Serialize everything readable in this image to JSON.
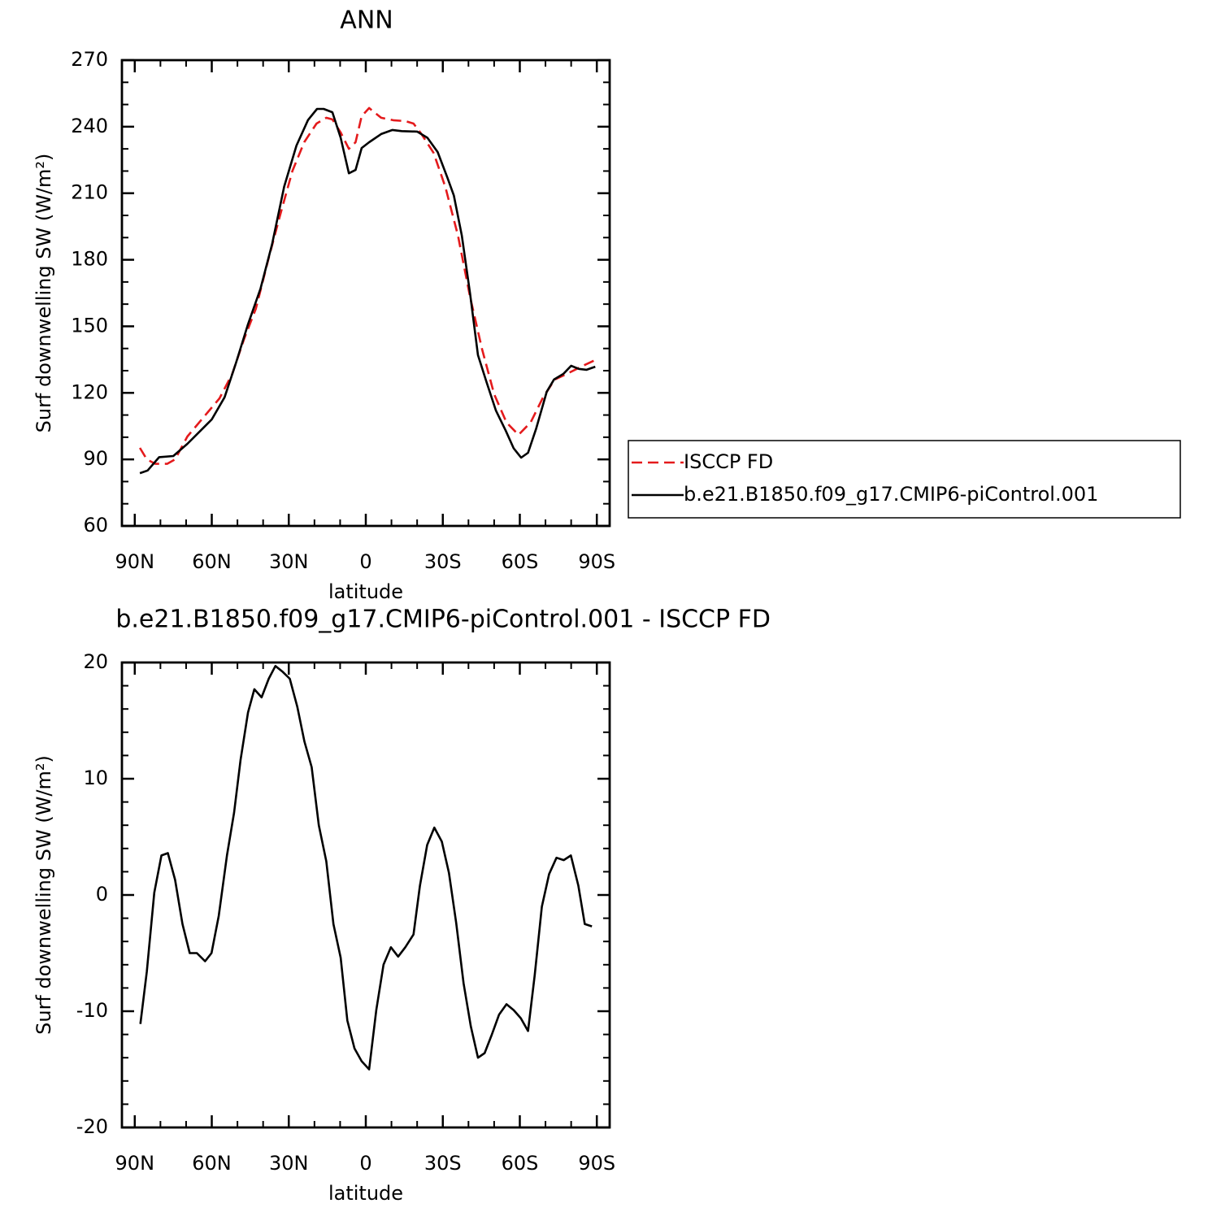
{
  "chart_data": [
    {
      "type": "line",
      "title": "ANN",
      "xlabel": "latitude",
      "ylabel": "Surf downwelling SW (W/m²)",
      "xlim": [
        95,
        -95
      ],
      "ylim": [
        60,
        270
      ],
      "xticks": [
        {
          "value": 90,
          "label": "90N"
        },
        {
          "value": 60,
          "label": "60N"
        },
        {
          "value": 30,
          "label": "30N"
        },
        0,
        {
          "value": -30,
          "label": "30S"
        },
        {
          "value": -60,
          "label": "60S"
        },
        {
          "value": -90,
          "label": "90S"
        }
      ],
      "yticks": [
        60,
        90,
        120,
        150,
        180,
        210,
        240,
        270
      ],
      "xminor_divisions": 3,
      "yminor_divisions": 3,
      "series": [
        {
          "name": "ISCCP FD",
          "color": "#e41a1c",
          "dash": true,
          "x": [
            88,
            85.3,
            82,
            77.4,
            74.3,
            69.5,
            63.2,
            57,
            52,
            47.5,
            42.8,
            38,
            33.4,
            28.6,
            24,
            19.2,
            15.4,
            13,
            9.8,
            6.6,
            4,
            1.6,
            -1.3,
            -6,
            -10.7,
            -15.4,
            -18.6,
            -21.7,
            -26.4,
            -31,
            -35.9,
            -40.6,
            -45.3,
            -50,
            -54.8,
            -59.5,
            -64.2,
            -68.9,
            -73.6,
            -78.4,
            -84.6,
            -89.4
          ],
          "values": [
            95.2,
            90,
            88,
            88,
            90,
            100.3,
            109,
            117.5,
            128.6,
            144,
            158,
            180,
            200,
            220,
            233,
            241.4,
            244,
            243.3,
            237.4,
            230,
            233,
            244.7,
            248.4,
            244,
            242.9,
            242.5,
            241.4,
            236.7,
            228.2,
            212.8,
            190.9,
            163.4,
            139.6,
            119.4,
            106.6,
            101.1,
            106.6,
            117.6,
            126,
            128.6,
            132.2,
            134.8
          ]
        },
        {
          "name": "b.e21.B1850.f09_g17.CMIP6-piControl.001",
          "color": "#000000",
          "dash": false,
          "x": [
            88,
            85,
            80.5,
            75,
            69.5,
            60,
            55,
            50.5,
            46,
            41,
            36.5,
            31.8,
            27,
            22.5,
            19,
            16.4,
            13,
            9.8,
            6.6,
            4,
            1.6,
            -1.3,
            -6,
            -10.4,
            -14,
            -20,
            -24,
            -28,
            -31.8,
            -34.3,
            -37.4,
            -40.6,
            -43.7,
            -47,
            -50.7,
            -54.5,
            -57.6,
            -60.5,
            -63.2,
            -66.4,
            -70.5,
            -73.3,
            -77,
            -80,
            -83,
            -86,
            -89.4
          ],
          "values": [
            83.8,
            85,
            91,
            91.5,
            97,
            108,
            118,
            133.7,
            150.5,
            167,
            187,
            213,
            231.5,
            243,
            248,
            248,
            246.5,
            235,
            219,
            220.5,
            230.4,
            233,
            236.7,
            238.5,
            238,
            237.8,
            235,
            228.6,
            217,
            209,
            191,
            165,
            137,
            125,
            112,
            103,
            95,
            90.8,
            93,
            104,
            120.5,
            126,
            128.6,
            132.2,
            130.8,
            130.4,
            131.8
          ]
        }
      ]
    },
    {
      "type": "line",
      "title": "b.e21.B1850.f09_g17.CMIP6-piControl.001 - ISCCP FD",
      "xlabel": "latitude",
      "ylabel": "Surf downwelling SW (W/m²)",
      "xlim": [
        95,
        -95
      ],
      "ylim": [
        -20,
        20
      ],
      "xticks": [
        {
          "value": 90,
          "label": "90N"
        },
        {
          "value": 60,
          "label": "60N"
        },
        {
          "value": 30,
          "label": "30N"
        },
        0,
        {
          "value": -30,
          "label": "30S"
        },
        {
          "value": -60,
          "label": "60S"
        },
        {
          "value": -90,
          "label": "90S"
        }
      ],
      "yticks": [
        -20,
        -10,
        0,
        10,
        20
      ],
      "xminor_divisions": 3,
      "yminor_divisions": 5,
      "color": "#000000",
      "x": [
        87.8,
        85.3,
        82.4,
        79.6,
        77.1,
        74.3,
        71.4,
        68.6,
        65.8,
        62.6,
        60.1,
        57.3,
        54.1,
        51.3,
        48.8,
        45.9,
        43.4,
        40.6,
        37.8,
        35.2,
        32.4,
        29.6,
        26.7,
        23.9,
        21.1,
        18.3,
        15.4,
        12.6,
        9.8,
        7.2,
        4.4,
        1.6,
        -1.3,
        -4.1,
        -6.9,
        -9.8,
        -12.6,
        -15.4,
        -18.6,
        -21.1,
        -23.9,
        -26.7,
        -29.6,
        -32.4,
        -35.2,
        -38.1,
        -40.9,
        -43.7,
        -46.3,
        -49.1,
        -51.9,
        -54.8,
        -57.6,
        -60.4,
        -63.2,
        -65.8,
        -68.6,
        -71.4,
        -74.3,
        -77.1,
        -79.9,
        -82.8,
        -85.3,
        -88.1
      ],
      "values": [
        -11.1,
        -6.6,
        0.2,
        3.4,
        3.6,
        1.3,
        -2.5,
        -5,
        -5,
        -5.7,
        -5,
        -1.8,
        3.4,
        7.1,
        11.6,
        15.7,
        17.7,
        17,
        18.6,
        19.7,
        19.2,
        18.6,
        16.2,
        13.2,
        11,
        6,
        2.9,
        -2.5,
        -5.4,
        -10.8,
        -13.2,
        -14.3,
        -15,
        -9.9,
        -6,
        -4.5,
        -5.3,
        -4.5,
        -3.4,
        0.8,
        4.3,
        5.8,
        4.6,
        1.9,
        -2.4,
        -7.6,
        -11.3,
        -14,
        -13.6,
        -12,
        -10.3,
        -9.4,
        -9.9,
        -10.6,
        -11.7,
        -6.9,
        -1,
        1.8,
        3.2,
        3,
        3.4,
        0.8,
        -2.5,
        -2.7
      ]
    }
  ]
}
